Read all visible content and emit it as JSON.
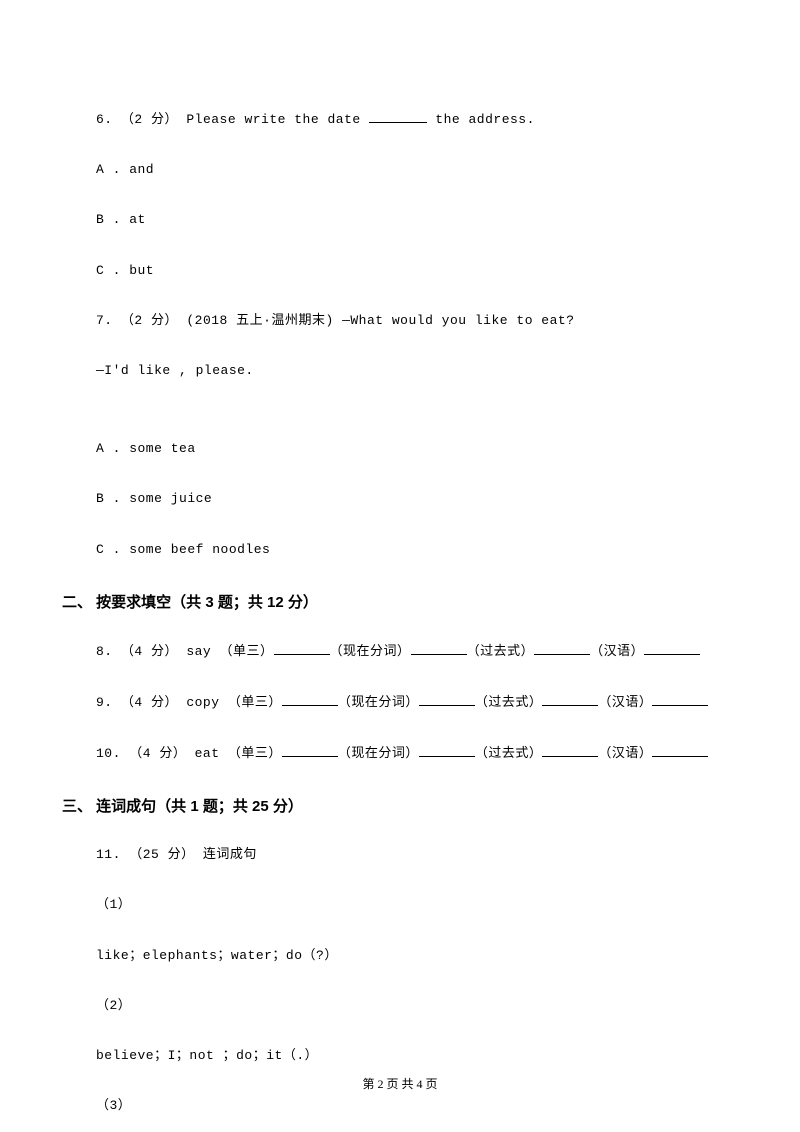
{
  "q6": {
    "number": "6.",
    "points": "（2 分）",
    "text_before": " Please write the date ",
    "text_after": " the address.",
    "opt_a": "A . and",
    "opt_b": "B . at",
    "opt_c": "C . but"
  },
  "q7": {
    "number": "7.",
    "points": "（2 分）",
    "source": "(2018 五上·温州期末) ",
    "text": "—What would you like to eat?",
    "line2_before": "—I'd like    ",
    "line2_after": ", please.",
    "opt_a": "A . some tea",
    "opt_b": "B . some juice",
    "opt_c": "C . some beef noodles"
  },
  "section2": {
    "title": "二、 按要求填空（共 3 题；共 12 分）"
  },
  "q8": {
    "number": "8.",
    "points": "（4 分）",
    "word": " say （单三）",
    "form1": "（现在分词）",
    "form2": "（过去式）",
    "form3": "（汉语）"
  },
  "q9": {
    "number": "9.",
    "points": "（4 分）",
    "word": " copy （单三）",
    "form1": "（现在分词）",
    "form2": "（过去式）",
    "form3": "（汉语）"
  },
  "q10": {
    "number": "10.",
    "points": "（4 分）",
    "word": " eat （单三）",
    "form1": "（现在分词）",
    "form2": "（过去式）",
    "form3": "（汉语）"
  },
  "section3": {
    "title": "三、 连词成句（共 1 题；共 25 分）"
  },
  "q11": {
    "number": "11.",
    "points": "（25 分）",
    "text": " 连词成句",
    "sub1_num": "（1）",
    "sub1_text": "like；elephants；water；do（?）",
    "sub2_num": "（2）",
    "sub2_text": "believe；I；not ；do；it（.）",
    "sub3_num": "（3）"
  },
  "footer": "第 2 页 共 4 页"
}
